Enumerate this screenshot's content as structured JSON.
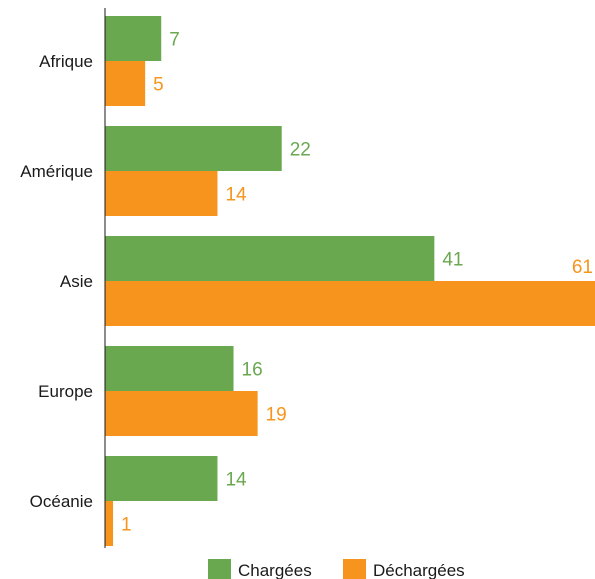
{
  "chart_data": {
    "type": "bar",
    "orientation": "horizontal",
    "categories": [
      "Afrique",
      "Amérique",
      "Asie",
      "Europe",
      "Océanie"
    ],
    "series": [
      {
        "name": "Chargées",
        "values": [
          7,
          22,
          41,
          16,
          14
        ],
        "color": "#6aa84f"
      },
      {
        "name": "Déchargées",
        "values": [
          5,
          14,
          61,
          19,
          1
        ],
        "color": "#f7941d"
      }
    ],
    "title": "",
    "xlabel": "",
    "ylabel": "",
    "xlim": [
      0,
      61
    ],
    "grid": false,
    "legend": "bottom-center",
    "data_labels": true
  }
}
